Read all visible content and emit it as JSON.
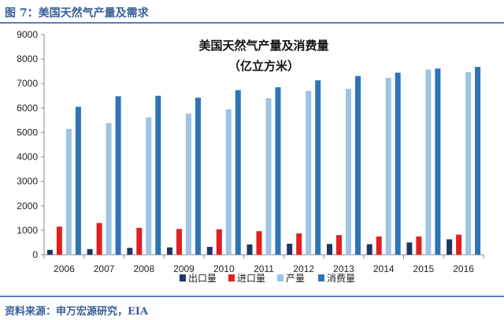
{
  "figure": {
    "label": "图 7：美国天然气产量及需求",
    "source": "资料来源：申万宏源研究，EIA"
  },
  "chart_data": {
    "type": "bar",
    "title": "美国天然气产量及消费量",
    "subtitle": "（亿立方米）",
    "categories": [
      "2006",
      "2007",
      "2008",
      "2009",
      "2010",
      "2011",
      "2012",
      "2013",
      "2014",
      "2015",
      "2016"
    ],
    "series": [
      {
        "name": "出口量",
        "color": "#1f3864",
        "values": [
          200,
          230,
          280,
          300,
          320,
          420,
          450,
          440,
          430,
          500,
          630
        ]
      },
      {
        "name": "进口量",
        "color": "#e02020",
        "values": [
          1150,
          1300,
          1100,
          1050,
          1040,
          960,
          870,
          800,
          750,
          750,
          820
        ]
      },
      {
        "name": "产量",
        "color": "#9dc3e6",
        "values": [
          5150,
          5380,
          5620,
          5770,
          5950,
          6400,
          6700,
          6780,
          7230,
          7570,
          7460
        ]
      },
      {
        "name": "消费量",
        "color": "#2e75b6",
        "values": [
          6050,
          6480,
          6500,
          6420,
          6730,
          6850,
          7130,
          7310,
          7440,
          7610,
          7680
        ]
      }
    ],
    "ylim": [
      0,
      9000
    ],
    "yticks": [
      0,
      1000,
      2000,
      3000,
      4000,
      5000,
      6000,
      7000,
      8000,
      9000
    ],
    "grid": false,
    "legend": "bottom"
  }
}
